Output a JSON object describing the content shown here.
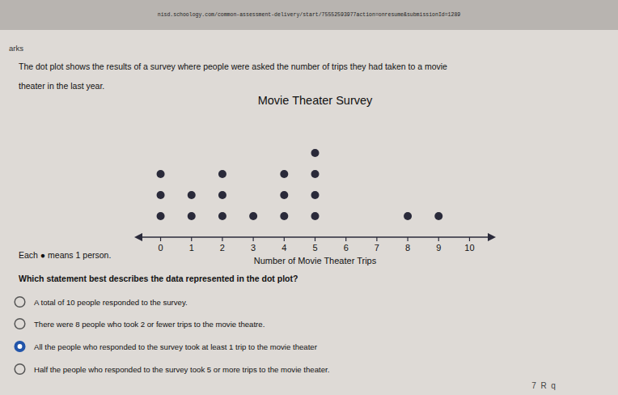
{
  "chart_data": {
    "type": "dot",
    "title": "Movie Theater Survey",
    "x_label": "Number of Movie Theater Trips",
    "x": [
      0,
      1,
      2,
      3,
      4,
      5,
      6,
      7,
      8,
      9,
      10
    ],
    "values": [
      3,
      2,
      3,
      1,
      3,
      4,
      0,
      0,
      1,
      1,
      0
    ],
    "color": "#2a2a3a",
    "xlim": [
      -0.8,
      10.8
    ],
    "xticks": [
      0,
      1,
      2,
      3,
      4,
      5,
      6,
      7,
      8,
      9,
      10
    ],
    "tick_labels": "x",
    "grid": false
  },
  "page": {
    "url_text": "nisd.schoology.com/common-assessment-delivery/start/75552593977action=onresume&submissionId=1289",
    "arks_text": "arks",
    "header_line1": "The dot plot shows the results of a survey where people were asked the number of trips they had taken to a movie",
    "header_line2": "theater in the last year.",
    "each_means_label": "Each ● means 1 person.",
    "question": "Which statement best describes the data represented in the dot plot?",
    "mc_options": [
      "A total of 10 people responded to the survey.",
      "There were 8 people who took 2 or fewer trips to the movie theatre.",
      "All the people who responded to the survey took at least 1 trip to the movie theater",
      "Half the people who responded to the survey took 5 or more trips to the movie theater."
    ],
    "selected_option": 2,
    "nav_text": "7  R  q"
  }
}
